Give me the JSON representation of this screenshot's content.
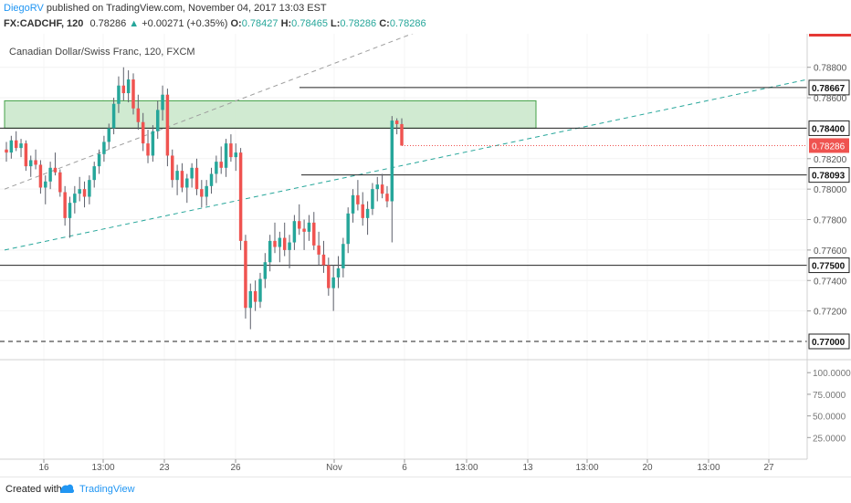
{
  "header": {
    "author": "DiegoRV",
    "published_text": "published on TradingView.com, November 04, 2017 13:03 EST",
    "symbol": "FX:CADCHF, 120",
    "last": "0.78286",
    "change": "+0.00271 (+0.35%)",
    "o_label": "O:",
    "o": "0.78427",
    "h_label": "H:",
    "h": "0.78465",
    "l_label": "L:",
    "l": "0.78286",
    "c_label": "C:",
    "c": "0.78286"
  },
  "chart_data": {
    "type": "candlestick",
    "title": "Canadian Dollar/Swiss Franc, 120, FXCM",
    "y_range": [
      0.7688,
      0.7902
    ],
    "y_ticks": [
      "0.78800",
      "0.78600",
      "0.78200",
      "0.78000",
      "0.77800",
      "0.77600",
      "0.77400",
      "0.77200"
    ],
    "x_ticks": [
      "16",
      "13:00",
      "23",
      "26",
      "Nov",
      "6",
      "13:00",
      "13",
      "13:00",
      "20",
      "13:00",
      "27"
    ],
    "price_labels": [
      {
        "value": 0.78667,
        "text": "0.78667",
        "style": "boxed"
      },
      {
        "value": 0.784,
        "text": "0.78400",
        "style": "boxed"
      },
      {
        "value": 0.78286,
        "text": "0.78286",
        "style": "current"
      },
      {
        "value": 0.78093,
        "text": "0.78093",
        "style": "boxed"
      },
      {
        "value": 0.775,
        "text": "0.77500",
        "style": "boxed"
      },
      {
        "value": 0.77,
        "text": "0.77000",
        "style": "boxed"
      }
    ],
    "candles": [
      [
        0.7826,
        0.7831,
        0.7818,
        0.7824
      ],
      [
        0.7824,
        0.7835,
        0.782,
        0.7832
      ],
      [
        0.7832,
        0.7838,
        0.7825,
        0.7827
      ],
      [
        0.7827,
        0.7833,
        0.7821,
        0.783
      ],
      [
        0.783,
        0.7832,
        0.7812,
        0.7815
      ],
      [
        0.7815,
        0.7822,
        0.7808,
        0.7819
      ],
      [
        0.7819,
        0.7826,
        0.7813,
        0.7816
      ],
      [
        0.7816,
        0.7819,
        0.7797,
        0.7801
      ],
      [
        0.7801,
        0.7809,
        0.779,
        0.7805
      ],
      [
        0.7805,
        0.7818,
        0.78,
        0.7814
      ],
      [
        0.7814,
        0.7824,
        0.7809,
        0.7811
      ],
      [
        0.7811,
        0.7813,
        0.7795,
        0.7798
      ],
      [
        0.7798,
        0.7802,
        0.7776,
        0.7781
      ],
      [
        0.7781,
        0.7795,
        0.7768,
        0.7791
      ],
      [
        0.7791,
        0.7802,
        0.7784,
        0.7797
      ],
      [
        0.7797,
        0.7808,
        0.7792,
        0.78
      ],
      [
        0.78,
        0.7805,
        0.7788,
        0.7795
      ],
      [
        0.7795,
        0.7809,
        0.779,
        0.7806
      ],
      [
        0.7806,
        0.7818,
        0.7801,
        0.7815
      ],
      [
        0.7815,
        0.7826,
        0.781,
        0.7823
      ],
      [
        0.7823,
        0.7835,
        0.7818,
        0.7831
      ],
      [
        0.7831,
        0.7843,
        0.7826,
        0.784
      ],
      [
        0.784,
        0.786,
        0.7836,
        0.7856
      ],
      [
        0.7856,
        0.7874,
        0.785,
        0.7868
      ],
      [
        0.7868,
        0.788,
        0.7858,
        0.7863
      ],
      [
        0.7863,
        0.7878,
        0.7857,
        0.7872
      ],
      [
        0.7872,
        0.7876,
        0.7849,
        0.7853
      ],
      [
        0.7853,
        0.7862,
        0.7839,
        0.7844
      ],
      [
        0.7844,
        0.785,
        0.7825,
        0.783
      ],
      [
        0.783,
        0.7839,
        0.7817,
        0.7822
      ],
      [
        0.7822,
        0.7842,
        0.7818,
        0.7838
      ],
      [
        0.7838,
        0.7858,
        0.7833,
        0.7852
      ],
      [
        0.7852,
        0.7868,
        0.7845,
        0.7862
      ],
      [
        0.7862,
        0.7866,
        0.7815,
        0.7822
      ],
      [
        0.7822,
        0.7826,
        0.7801,
        0.7806
      ],
      [
        0.7806,
        0.7816,
        0.7796,
        0.7812
      ],
      [
        0.7812,
        0.7817,
        0.7798,
        0.7801
      ],
      [
        0.7801,
        0.781,
        0.7791,
        0.7807
      ],
      [
        0.7807,
        0.7817,
        0.7801,
        0.7814
      ],
      [
        0.7814,
        0.782,
        0.7796,
        0.78
      ],
      [
        0.78,
        0.7806,
        0.7788,
        0.7795
      ],
      [
        0.7795,
        0.7806,
        0.7789,
        0.7802
      ],
      [
        0.7802,
        0.7814,
        0.7797,
        0.781
      ],
      [
        0.781,
        0.7822,
        0.7804,
        0.7818
      ],
      [
        0.7818,
        0.7828,
        0.781,
        0.7814
      ],
      [
        0.7814,
        0.7833,
        0.7808,
        0.783
      ],
      [
        0.783,
        0.7836,
        0.7818,
        0.7821
      ],
      [
        0.7821,
        0.783,
        0.7812,
        0.7824
      ],
      [
        0.7824,
        0.7827,
        0.776,
        0.7766
      ],
      [
        0.7766,
        0.777,
        0.7715,
        0.7722
      ],
      [
        0.7722,
        0.7738,
        0.7708,
        0.7733
      ],
      [
        0.7733,
        0.774,
        0.772,
        0.7726
      ],
      [
        0.7726,
        0.7745,
        0.7722,
        0.7741
      ],
      [
        0.7741,
        0.7758,
        0.7735,
        0.7752
      ],
      [
        0.7752,
        0.777,
        0.7746,
        0.7766
      ],
      [
        0.7766,
        0.7778,
        0.7758,
        0.7762
      ],
      [
        0.7762,
        0.7772,
        0.7752,
        0.7768
      ],
      [
        0.7768,
        0.7778,
        0.7756,
        0.776
      ],
      [
        0.776,
        0.777,
        0.7748,
        0.7765
      ],
      [
        0.7765,
        0.7783,
        0.776,
        0.7779
      ],
      [
        0.7779,
        0.779,
        0.777,
        0.7774
      ],
      [
        0.7774,
        0.778,
        0.776,
        0.7772
      ],
      [
        0.7772,
        0.7783,
        0.7766,
        0.7778
      ],
      [
        0.7778,
        0.7785,
        0.776,
        0.7763
      ],
      [
        0.7763,
        0.7772,
        0.775,
        0.7757
      ],
      [
        0.7757,
        0.7766,
        0.7745,
        0.775
      ],
      [
        0.775,
        0.7755,
        0.773,
        0.7735
      ],
      [
        0.7735,
        0.775,
        0.772,
        0.7742
      ],
      [
        0.7742,
        0.7756,
        0.7735,
        0.7748
      ],
      [
        0.7748,
        0.7768,
        0.7742,
        0.7764
      ],
      [
        0.7764,
        0.7788,
        0.7758,
        0.7784
      ],
      [
        0.7784,
        0.78,
        0.7778,
        0.7796
      ],
      [
        0.7796,
        0.7806,
        0.7786,
        0.779
      ],
      [
        0.779,
        0.7798,
        0.7776,
        0.7781
      ],
      [
        0.7781,
        0.7792,
        0.777,
        0.7787
      ],
      [
        0.7787,
        0.7804,
        0.7783,
        0.78
      ],
      [
        0.78,
        0.7808,
        0.7792,
        0.7803
      ],
      [
        0.7803,
        0.781,
        0.7794,
        0.7797
      ],
      [
        0.7797,
        0.7802,
        0.7788,
        0.7792
      ],
      [
        0.7792,
        0.7848,
        0.7765,
        0.7845
      ],
      [
        0.7845,
        0.78465,
        0.7836,
        0.78427
      ],
      [
        0.78427,
        0.78465,
        0.78286,
        0.78286
      ]
    ],
    "candle_x_range": [
      7,
      440
    ],
    "lines": [
      {
        "name": "resistance-line-78667",
        "y": 0.78667,
        "x1": 328,
        "x2": 884,
        "dash": false
      },
      {
        "name": "support-line-78093",
        "y": 0.78093,
        "x1": 330,
        "x2": 884,
        "dash": false
      },
      {
        "name": "level-line-78400",
        "y": 0.784,
        "x1": 0,
        "x2": 884,
        "dash": false
      },
      {
        "name": "level-line-77500",
        "y": 0.775,
        "x1": 0,
        "x2": 884,
        "dash": false
      },
      {
        "name": "level-line-77000",
        "y": 0.77,
        "x1": 0,
        "x2": 884,
        "dash": true
      },
      {
        "name": "current-price-line",
        "y": 0.78286,
        "x1": 440,
        "x2": 884,
        "dash": "dotted"
      }
    ],
    "zone": {
      "y_top": 0.7858,
      "y_bottom": 0.784,
      "x1": 5,
      "x2": 587
    },
    "trendlines": [
      {
        "name": "teal-trendline",
        "x1": 5,
        "y1": 0.776,
        "x2": 884,
        "y2": 0.7872,
        "color": "#26a69a"
      },
      {
        "name": "gray-trendline",
        "x1": 5,
        "y1": 0.78,
        "x2": 460,
        "y2": 0.7904,
        "color": "#9e9e9e"
      }
    ],
    "indicator": {
      "y_range": [
        0,
        115
      ],
      "ticks": [
        {
          "value": 100,
          "text": "100.0000"
        },
        {
          "value": 75,
          "text": "75.0000"
        },
        {
          "value": 50,
          "text": "50.0000"
        },
        {
          "value": 25,
          "text": "25.0000"
        }
      ]
    }
  },
  "footer": {
    "created_with": "Created with",
    "brand": "TradingView"
  },
  "colors": {
    "up": "#26a69a",
    "down": "#ef5350",
    "candle_wick": "#5d606b",
    "zone_fill": "#c8e6c9",
    "zone_border": "#43a047",
    "link": "#2196f3",
    "current": "#ef5350"
  }
}
